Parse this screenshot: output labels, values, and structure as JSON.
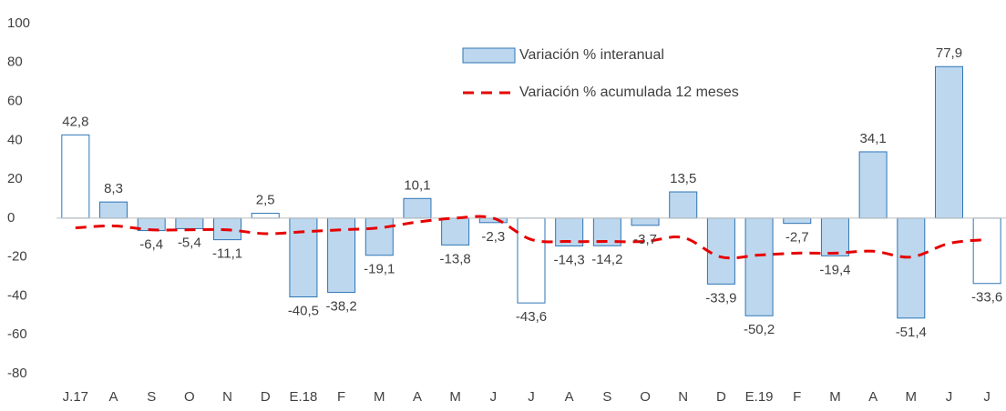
{
  "chart_data": {
    "type": "bar",
    "categories": [
      "J.17",
      "A",
      "S",
      "O",
      "N",
      "D",
      "E.18",
      "F",
      "M",
      "A",
      "M",
      "J",
      "J",
      "A",
      "S",
      "O",
      "N",
      "D",
      "E.19",
      "F",
      "M",
      "A",
      "M",
      "J",
      "J"
    ],
    "series": [
      {
        "name": "Variación % interanual",
        "type": "bar",
        "edge_color": "#2e75b6",
        "colors": [
          "#ffffff",
          "#bdd7ee",
          "#bdd7ee",
          "#bdd7ee",
          "#bdd7ee",
          "#ffffff",
          "#bdd7ee",
          "#bdd7ee",
          "#bdd7ee",
          "#bdd7ee",
          "#bdd7ee",
          "#bdd7ee",
          "#ffffff",
          "#bdd7ee",
          "#bdd7ee",
          "#bdd7ee",
          "#bdd7ee",
          "#bdd7ee",
          "#bdd7ee",
          "#bdd7ee",
          "#bdd7ee",
          "#bdd7ee",
          "#bdd7ee",
          "#bdd7ee",
          "#ffffff"
        ],
        "values": [
          42.8,
          8.3,
          -6.4,
          -5.4,
          -11.1,
          2.5,
          -40.5,
          -38.2,
          -19.1,
          10.1,
          -13.8,
          -2.3,
          -43.6,
          -14.3,
          -14.2,
          -3.7,
          13.5,
          -33.9,
          -50.2,
          -2.7,
          -19.4,
          34.1,
          -51.4,
          77.9,
          -33.6
        ],
        "value_labels": [
          "42,8",
          "8,3",
          "-6,4",
          "-5,4",
          "-11,1",
          "2,5",
          "-40,5",
          "-38,2",
          "-19,1",
          "10,1",
          "-13,8",
          "-2,3",
          "-43,6",
          "-14,3",
          "-14,2",
          "-3,7",
          "13,5",
          "-33,9",
          "-50,2",
          "-2,7",
          "-19,4",
          "34,1",
          "-51,4",
          "77,9",
          "-33,6"
        ]
      },
      {
        "name": "Variación % acumulada 12 meses",
        "type": "line",
        "color": "#e60000",
        "values": [
          -5,
          -4,
          -6,
          -6,
          -6,
          -8,
          -7,
          -6,
          -5,
          -2,
          0,
          0,
          -11,
          -12,
          -12,
          -12,
          -10,
          -20,
          -19,
          -18,
          -18,
          -17,
          -20,
          -13,
          -11
        ]
      }
    ],
    "ylim": [
      -80,
      100
    ],
    "yticks": [
      -80,
      -60,
      -40,
      -20,
      0,
      20,
      40,
      60,
      80,
      100
    ],
    "grid": false,
    "legend": "top-center"
  }
}
